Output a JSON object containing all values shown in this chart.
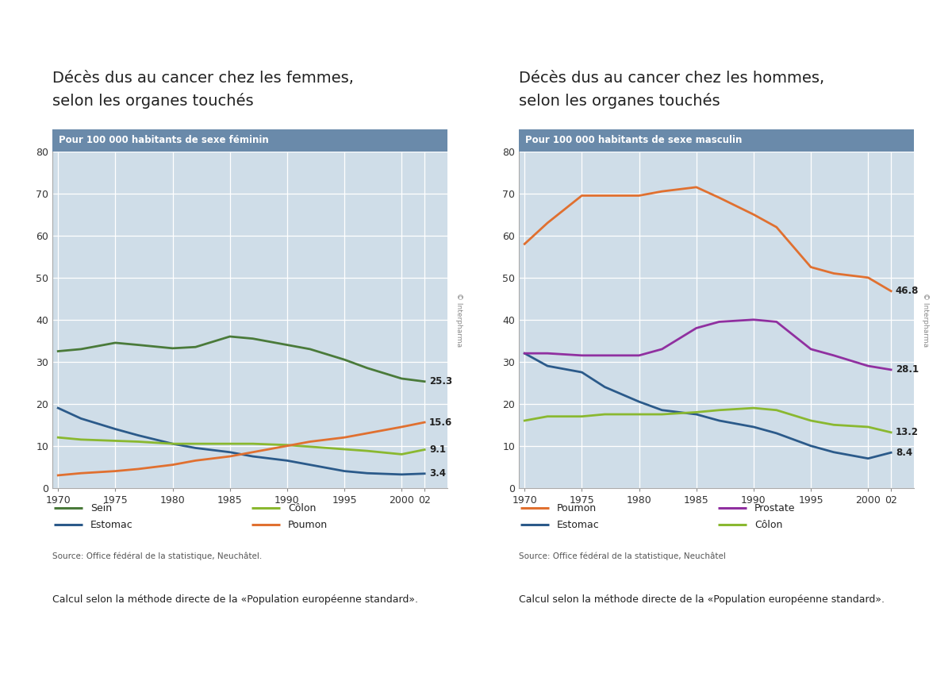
{
  "left_title_line1": "Décès dus au cancer chez les femmes,",
  "left_title_line2": "selon les organes touchés",
  "right_title_line1": "Décès dus au cancer chez les hommes,",
  "right_title_line2": "selon les organes touchés",
  "left_subtitle": "Pour 100 000 habitants de sexe féminin",
  "right_subtitle": "Pour 100 000 habitants de sexe masculin",
  "left_source": "Source: Office fédéral de la statistique, Neuchâtel.",
  "right_source": "Source: Office fédéral de la statistique, Neuchâtel",
  "calcul_text": "Calcul selon la méthode directe de la «Population européenne standard».",
  "copyright_text": "© Interpharma",
  "years": [
    1970,
    1972,
    1975,
    1977,
    1980,
    1982,
    1985,
    1987,
    1990,
    1992,
    1995,
    1997,
    2000,
    2002
  ],
  "left_sein": [
    32.5,
    33.0,
    34.5,
    34.0,
    33.2,
    33.5,
    36.0,
    35.5,
    34.0,
    33.0,
    30.5,
    28.5,
    26.0,
    25.3
  ],
  "left_estomac": [
    19.0,
    16.5,
    14.0,
    12.5,
    10.5,
    9.5,
    8.5,
    7.5,
    6.5,
    5.5,
    4.0,
    3.5,
    3.2,
    3.4
  ],
  "left_colon": [
    12.0,
    11.5,
    11.2,
    11.0,
    10.5,
    10.5,
    10.5,
    10.5,
    10.2,
    9.8,
    9.2,
    8.8,
    8.0,
    9.1
  ],
  "left_poumon": [
    3.0,
    3.5,
    4.0,
    4.5,
    5.5,
    6.5,
    7.5,
    8.5,
    10.0,
    11.0,
    12.0,
    13.0,
    14.5,
    15.6
  ],
  "left_end_labels": {
    "sein": "25.3",
    "colon": "9.1",
    "poumon": "15.6",
    "estomac": "3.4"
  },
  "right_poumon": [
    58.0,
    63.0,
    69.5,
    69.5,
    69.5,
    70.5,
    71.5,
    69.0,
    65.0,
    62.0,
    52.5,
    51.0,
    50.0,
    46.8
  ],
  "right_estomac": [
    32.0,
    29.0,
    27.5,
    24.0,
    20.5,
    18.5,
    17.5,
    16.0,
    14.5,
    13.0,
    10.0,
    8.5,
    7.0,
    8.4
  ],
  "right_prostate": [
    32.0,
    32.0,
    31.5,
    31.5,
    31.5,
    33.0,
    38.0,
    39.5,
    40.0,
    39.5,
    33.0,
    31.5,
    29.0,
    28.1
  ],
  "right_colon": [
    16.0,
    17.0,
    17.0,
    17.5,
    17.5,
    17.5,
    18.0,
    18.5,
    19.0,
    18.5,
    16.0,
    15.0,
    14.5,
    13.2
  ],
  "right_end_labels": {
    "poumon": "46.8",
    "prostate": "28.1",
    "colon": "13.2",
    "estomac": "8.4"
  },
  "color_sein": "#4a7a3a",
  "color_estomac": "#2b5a8a",
  "color_colon": "#8ab830",
  "color_poumon": "#e07030",
  "color_prostate": "#9030a0",
  "color_colon_m": "#8ab830",
  "bg_plot": "#cfdde8",
  "bg_subtitle": "#6a8aaa",
  "ylim": [
    0,
    80
  ],
  "yticks": [
    0,
    10,
    20,
    30,
    40,
    50,
    60,
    70,
    80
  ],
  "xtick_labels": [
    "1970",
    "1975",
    "1980",
    "1985",
    "1990",
    "1995",
    "2000",
    "02"
  ],
  "xtick_values": [
    1970,
    1975,
    1980,
    1985,
    1990,
    1995,
    2000,
    2002
  ]
}
